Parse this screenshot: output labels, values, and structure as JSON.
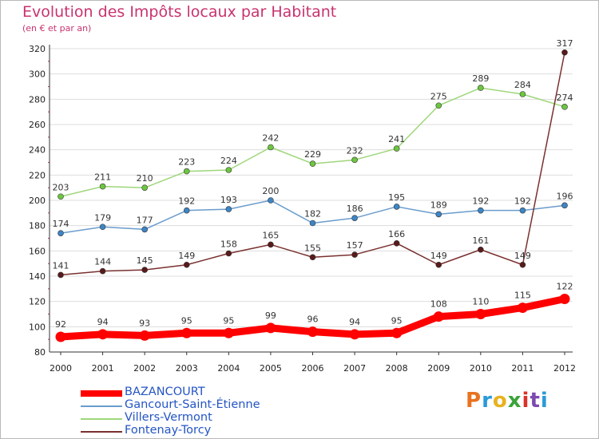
{
  "header": {
    "title": "Evolution des Impôts locaux par Habitant",
    "subtitle": "(en € et par an)"
  },
  "logo": {
    "letters": [
      "P",
      "r",
      "o",
      "x",
      "i",
      "t",
      "i"
    ],
    "colors": [
      "#e8731f",
      "#2a9ad9",
      "#e8b21f",
      "#3aa33a",
      "#d9322a",
      "#7c4ab0",
      "#2a9ad9"
    ]
  },
  "colors": {
    "grid": "#dddddd",
    "axis": "#333333",
    "minorTick": "#c8336f"
  },
  "chart_data": {
    "type": "line",
    "title": "Evolution des Impôts locaux par Habitant",
    "subtitle": "(en € et par an)",
    "xlabel": "",
    "ylabel": "",
    "x": [
      "2000",
      "2001",
      "2002",
      "2003",
      "2004",
      "2005",
      "2006",
      "2007",
      "2008",
      "2009",
      "2010",
      "2011",
      "2012"
    ],
    "ylim": [
      80,
      320
    ],
    "yticks": [
      80,
      100,
      120,
      140,
      160,
      180,
      200,
      220,
      240,
      260,
      280,
      300,
      320
    ],
    "grid": "horizontal",
    "legend": "bottom-left",
    "series": [
      {
        "name": "BAZANCOURT",
        "values": [
          92,
          94,
          93,
          95,
          95,
          99,
          96,
          94,
          95,
          108,
          110,
          115,
          122
        ],
        "color": "#ff0000",
        "marker": "#ff0000"
      },
      {
        "name": "Gancourt-Saint-Étienne",
        "values": [
          174,
          179,
          177,
          192,
          193,
          200,
          182,
          186,
          195,
          189,
          192,
          192,
          196
        ],
        "color": "#6a9ccc",
        "marker": "#3d85c6"
      },
      {
        "name": "Villers-Vermont",
        "values": [
          203,
          211,
          210,
          223,
          224,
          242,
          229,
          232,
          241,
          275,
          289,
          284,
          274
        ],
        "color": "#9ed67a",
        "marker": "#6cc63f"
      },
      {
        "name": "Fontenay-Torcy",
        "values": [
          141,
          144,
          145,
          149,
          158,
          165,
          155,
          157,
          166,
          149,
          161,
          149,
          317
        ],
        "color": "#7a3030",
        "marker": "#5a1a1a"
      }
    ]
  }
}
